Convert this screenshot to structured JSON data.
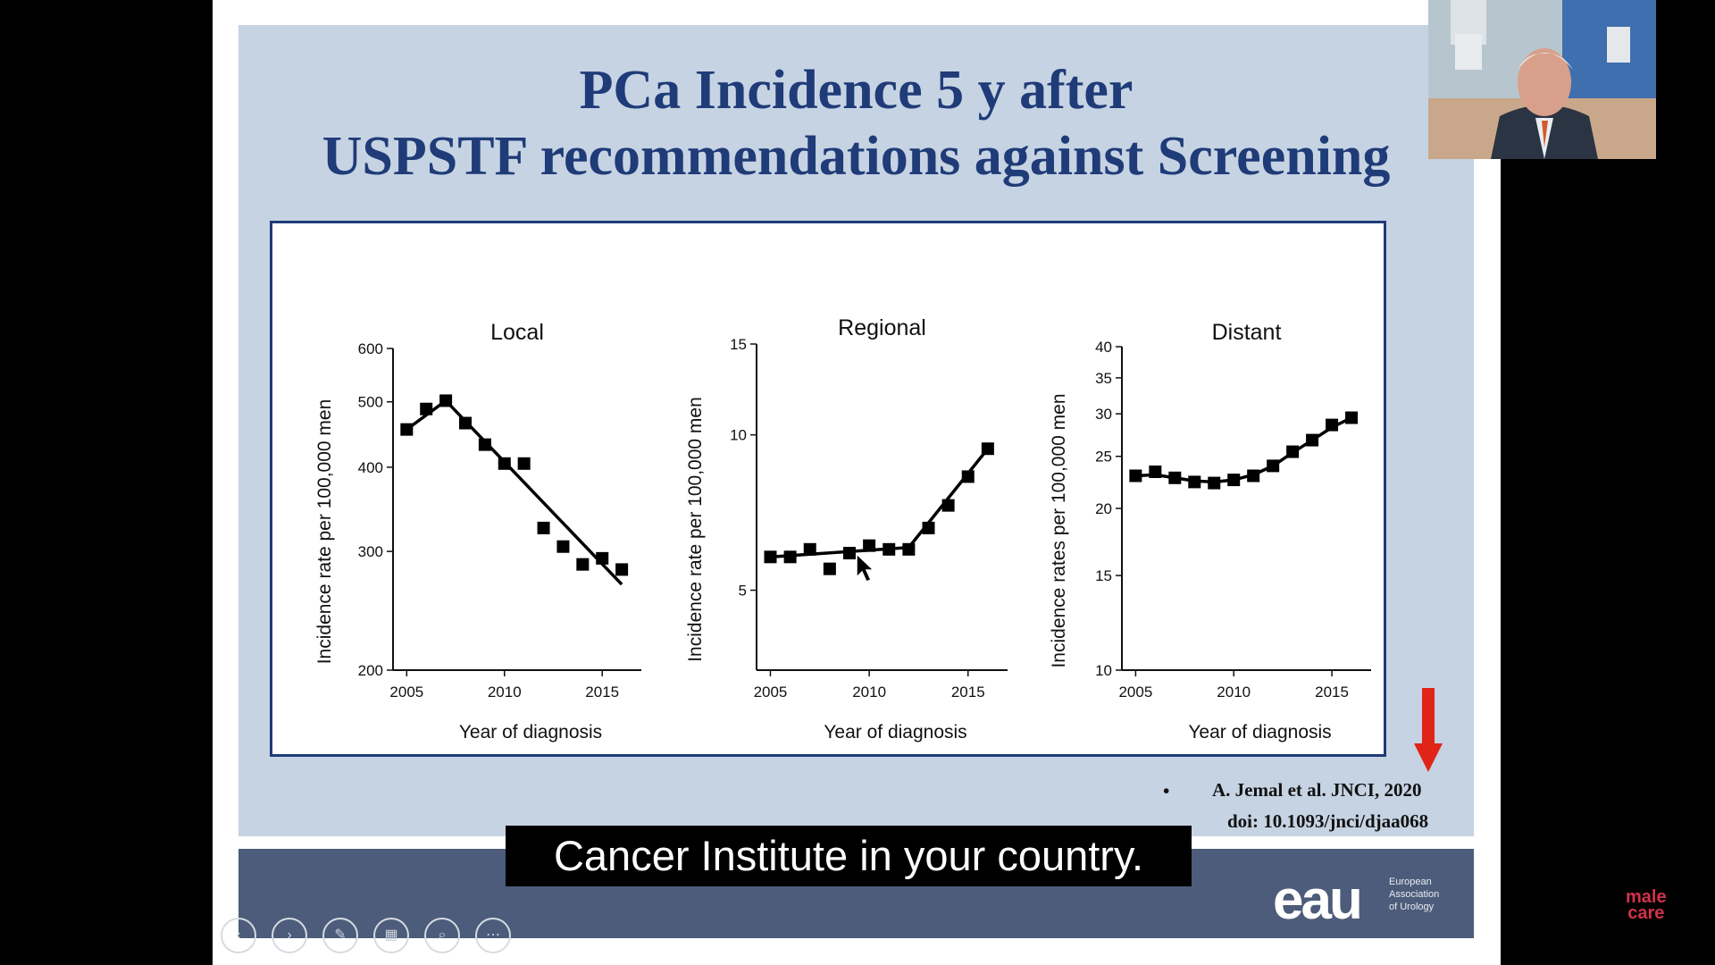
{
  "slide": {
    "title_line1": "PCa  Incidence 5 y after",
    "title_line2": "USPSTF recommendations against Screening",
    "reference_line1": "A. Jemal et al. JNCI,  2020",
    "reference_line2": "doi: 10.1093/jnci/djaa068",
    "bullet": "•"
  },
  "caption": "Cancer Institute in your country.",
  "footer": {
    "logo_text": "eau",
    "logo_subtext": [
      "European",
      "Association",
      "of Urology"
    ]
  },
  "brand": {
    "line1": "male",
    "line2": "care"
  },
  "colors": {
    "title": "#1f3b78",
    "panel_bg": "#c6d3e3",
    "footer_band": "#4c5c7a",
    "arrow": "#e02418",
    "brand": "#d2324a"
  },
  "player_controls": [
    "prev-icon",
    "next-icon",
    "pen-icon",
    "grid-icon",
    "zoom-icon",
    "more-icon"
  ],
  "chart_data": [
    {
      "type": "scatter",
      "title": "Local",
      "xlabel": "Year of diagnosis",
      "ylabel": "Incidence rate per 100,000 men",
      "y_scale": "log",
      "xlim": [
        2004.3,
        2017
      ],
      "ylim": [
        200,
        600
      ],
      "x_ticks": [
        "2005",
        "2010",
        "2015"
      ],
      "y_ticks": [
        "200",
        "300",
        "400",
        "500",
        "600"
      ],
      "x": [
        2005,
        2006,
        2007,
        2008,
        2009,
        2010,
        2011,
        2012,
        2013,
        2014,
        2015,
        2016
      ],
      "y": [
        455,
        488,
        502,
        465,
        432,
        405,
        405,
        325,
        305,
        287,
        293,
        282
      ],
      "trend_line": {
        "x": [
          2005,
          2007,
          2016
        ],
        "y": [
          455,
          502,
          268
        ]
      }
    },
    {
      "type": "scatter",
      "title": "Regional",
      "xlabel": "Year of diagnosis",
      "ylabel": "Incidence rate per 100,000 men",
      "y_scale": "log",
      "xlim": [
        2004.3,
        2017
      ],
      "ylim": [
        3.5,
        15
      ],
      "x_ticks": [
        "2005",
        "2010",
        "2015"
      ],
      "y_ticks": [
        "5",
        "10",
        "15"
      ],
      "x": [
        2005,
        2006,
        2007,
        2008,
        2009,
        2010,
        2011,
        2012,
        2013,
        2014,
        2015,
        2016
      ],
      "y": [
        5.8,
        5.8,
        6.0,
        5.5,
        5.9,
        6.1,
        6.0,
        6.0,
        6.6,
        7.3,
        8.3,
        9.4
      ],
      "trend_line": {
        "x": [
          2005,
          2012,
          2016
        ],
        "y": [
          5.8,
          6.05,
          9.4
        ]
      }
    },
    {
      "type": "scatter",
      "title": "Distant",
      "xlabel": "Year of diagnosis",
      "ylabel": "Incidence rates per 100,000 men",
      "y_scale": "log",
      "xlim": [
        2004.3,
        2017
      ],
      "ylim": [
        10,
        40
      ],
      "x_ticks": [
        "2005",
        "2010",
        "2015"
      ],
      "y_ticks": [
        "10",
        "15",
        "20",
        "25",
        "30",
        "35",
        "40"
      ],
      "x": [
        2005,
        2006,
        2007,
        2008,
        2009,
        2010,
        2011,
        2012,
        2013,
        2014,
        2015,
        2016
      ],
      "y": [
        23.0,
        23.4,
        22.8,
        22.4,
        22.3,
        22.6,
        23.0,
        24.0,
        25.5,
        26.8,
        28.6,
        29.5
      ],
      "trend_line": {
        "x": [
          2005,
          2006,
          2007,
          2008,
          2009,
          2010,
          2011,
          2012,
          2013,
          2014,
          2015,
          2016
        ],
        "y": [
          23.0,
          23.1,
          22.8,
          22.5,
          22.4,
          22.6,
          23.1,
          24.0,
          25.4,
          26.8,
          28.3,
          29.5
        ]
      }
    }
  ]
}
